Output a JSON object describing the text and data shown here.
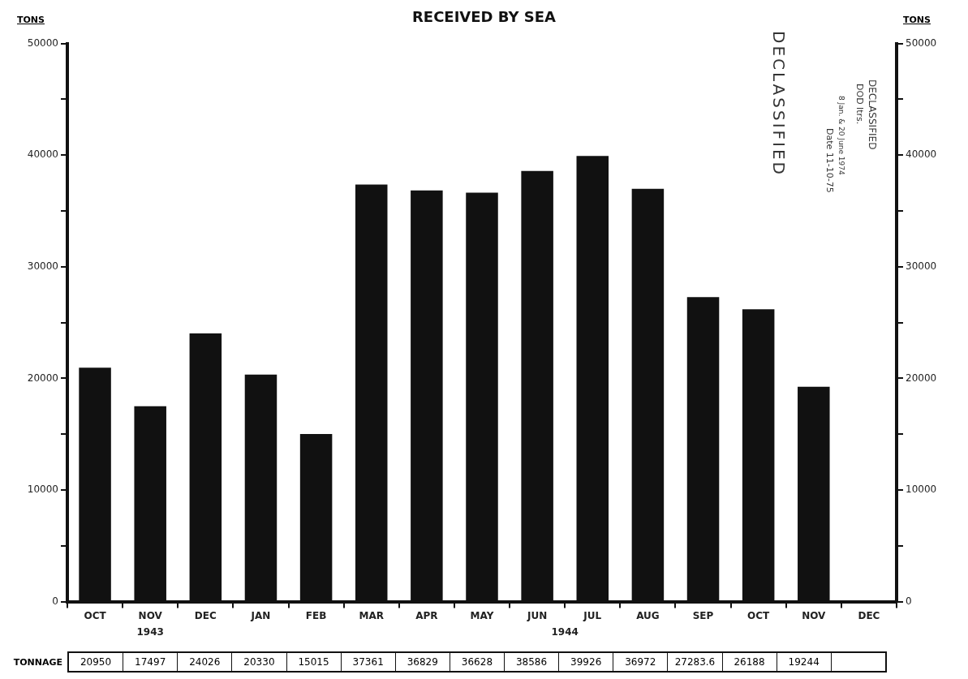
{
  "chart_data": {
    "type": "bar",
    "title": "RECEIVED BY SEA",
    "ylabel": "TONS",
    "y2label": "TONS",
    "categories": [
      "OCT",
      "NOV",
      "DEC",
      "JAN",
      "FEB",
      "MAR",
      "APR",
      "MAY",
      "JUN",
      "JUL",
      "AUG",
      "SEP",
      "OCT",
      "NOV",
      "DEC"
    ],
    "series": [
      {
        "name": "TONNAGE",
        "color": "#111111",
        "values": [
          20950,
          17497,
          24026,
          20330,
          15015,
          37361,
          36829,
          36628,
          38586,
          39926,
          36972,
          27283.6,
          26188,
          19244,
          null
        ]
      }
    ],
    "ylim": [
      0,
      50000
    ],
    "yticks": [
      0,
      {
        "value": 5000,
        "label": null
      },
      10000,
      {
        "value": 15000,
        "label": null
      },
      20000,
      {
        "value": 25000,
        "label": null
      },
      30000,
      {
        "value": 35000,
        "label": null
      },
      40000,
      {
        "value": 45000,
        "label": null
      },
      50000
    ],
    "y2lim": [
      0,
      50000
    ],
    "y2ticks": [
      0,
      {
        "value": 5000,
        "label": null
      },
      10000,
      {
        "value": 15000,
        "label": null
      },
      20000,
      {
        "value": 25000,
        "label": null
      },
      30000,
      {
        "value": 35000,
        "label": null
      },
      40000,
      {
        "value": 45000,
        "label": null
      },
      50000
    ],
    "data_labels": true,
    "grid": false,
    "legend": false,
    "annotations": [
      "1943",
      "1944",
      "DECLASSIFIED",
      "DECLASSIFIED",
      "DOD ltrs.",
      "8 Jan. & 20 June 1974",
      "Date 11-10-75"
    ]
  }
}
